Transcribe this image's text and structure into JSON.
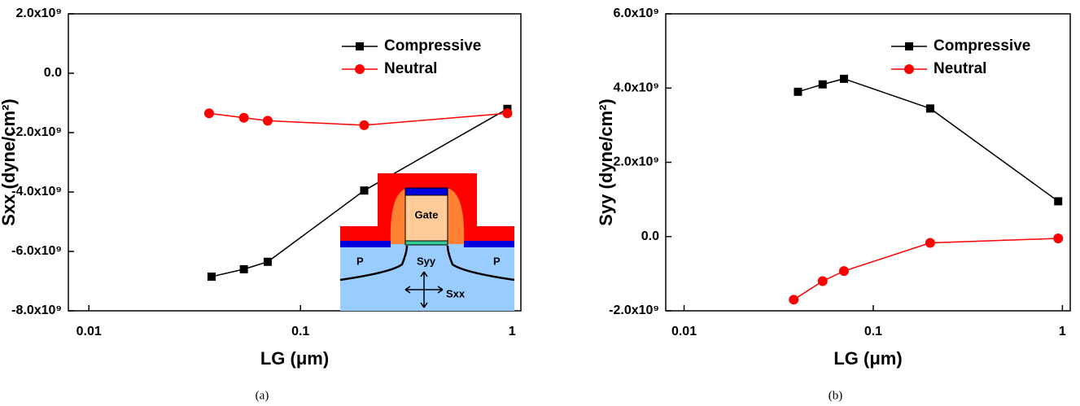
{
  "chart_data": [
    {
      "type": "line",
      "ylabel": "Sxx (dyne/cm²)",
      "xlabel": "LG (μm)",
      "caption": "(a)",
      "xscale": "log",
      "xlim": [
        0.008,
        1.1
      ],
      "xticks": [
        0.01,
        0.1,
        1
      ],
      "ylim": [
        -8000000000,
        2000000000
      ],
      "yticks": [
        {
          "value": -8000000000,
          "label": "-8.0x10⁹"
        },
        {
          "value": -6000000000,
          "label": "-6.0x10⁹"
        },
        {
          "value": -4000000000,
          "label": "-4.0x10⁹"
        },
        {
          "value": -2000000000,
          "label": "-2.0x10⁹"
        },
        {
          "value": 0,
          "label": "0.0"
        },
        {
          "value": 2000000000,
          "label": "2.0x10⁹"
        }
      ],
      "legend": "upper right",
      "series": [
        {
          "name": "Compressive",
          "color": "#000000",
          "marker": "square",
          "x": [
            0.038,
            0.054,
            0.07,
            0.2,
            0.95
          ],
          "values": [
            -6850000000,
            -6600000000,
            -6350000000,
            -3950000000,
            -1200000000
          ]
        },
        {
          "name": "Neutral",
          "color": "#ff0000",
          "marker": "circle",
          "x": [
            0.037,
            0.054,
            0.07,
            0.2,
            0.95
          ],
          "values": [
            -1350000000,
            -1500000000,
            -1600000000,
            -1750000000,
            -1350000000
          ]
        }
      ],
      "inset": {
        "gate": "Gate",
        "source": "P",
        "drain": "P",
        "syy": "Syy",
        "sxx": "Sxx"
      }
    },
    {
      "type": "line",
      "ylabel": "Syy (dyne/cm²)",
      "xlabel": "LG (μm)",
      "caption": "(b)",
      "xscale": "log",
      "xlim": [
        0.008,
        1.1
      ],
      "xticks": [
        0.01,
        0.1,
        1
      ],
      "ylim": [
        -2000000000,
        6000000000
      ],
      "yticks": [
        {
          "value": -2000000000,
          "label": "-2.0x10⁹"
        },
        {
          "value": 0,
          "label": "0.0"
        },
        {
          "value": 2000000000,
          "label": "2.0x10⁹"
        },
        {
          "value": 4000000000,
          "label": "4.0x10⁹"
        },
        {
          "value": 6000000000,
          "label": "6.0x10⁹"
        }
      ],
      "legend": "upper right",
      "series": [
        {
          "name": "Compressive",
          "color": "#000000",
          "marker": "square",
          "x": [
            0.04,
            0.054,
            0.07,
            0.2,
            0.95
          ],
          "values": [
            3900000000,
            4100000000,
            4250000000,
            3450000000,
            950000000
          ]
        },
        {
          "name": "Neutral",
          "color": "#ff0000",
          "marker": "circle",
          "x": [
            0.038,
            0.054,
            0.07,
            0.2,
            0.95
          ],
          "values": [
            -1700000000,
            -1200000000,
            -930000000,
            -170000000,
            -50000000
          ]
        }
      ]
    }
  ]
}
